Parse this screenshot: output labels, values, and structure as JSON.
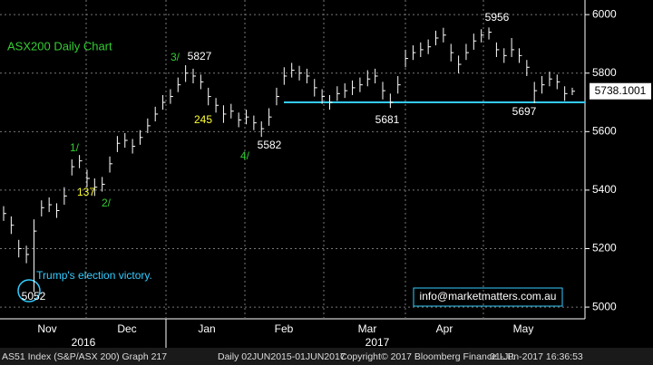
{
  "chart_data": {
    "type": "ohlc",
    "title": "ASX200 Daily Chart",
    "color": "#ffffff",
    "close": [
      5320,
      5280,
      5200,
      5180,
      5260,
      5340,
      5350,
      5330,
      5380,
      5480,
      5500,
      5440,
      5410,
      5420,
      5490,
      5560,
      5570,
      5550,
      5580,
      5620,
      5660,
      5700,
      5720,
      5760,
      5800,
      5790,
      5770,
      5720,
      5690,
      5660,
      5670,
      5640,
      5650,
      5630,
      5610,
      5650,
      5720,
      5790,
      5810,
      5800,
      5790,
      5750,
      5720,
      5700,
      5730,
      5740,
      5750,
      5760,
      5780,
      5790,
      5740,
      5700,
      5760,
      5850,
      5870,
      5880,
      5890,
      5920,
      5930,
      5870,
      5830,
      5870,
      5910,
      5930,
      5940,
      5880,
      5860,
      5880,
      5860,
      5820,
      5740,
      5760,
      5780,
      5770,
      5730,
      5738.1001
    ],
    "high": [
      5345,
      5310,
      5230,
      5210,
      5300,
      5365,
      5375,
      5355,
      5410,
      5505,
      5520,
      5470,
      5440,
      5445,
      5515,
      5585,
      5595,
      5575,
      5605,
      5645,
      5685,
      5725,
      5745,
      5785,
      5827,
      5815,
      5795,
      5750,
      5715,
      5690,
      5695,
      5665,
      5675,
      5655,
      5635,
      5680,
      5750,
      5820,
      5835,
      5825,
      5815,
      5780,
      5745,
      5725,
      5755,
      5765,
      5775,
      5785,
      5810,
      5815,
      5770,
      5730,
      5790,
      5880,
      5895,
      5905,
      5915,
      5945,
      5955,
      5900,
      5860,
      5900,
      5935,
      5950,
      5956,
      5905,
      5885,
      5920,
      5885,
      5845,
      5770,
      5790,
      5805,
      5795,
      5755,
      5750
    ],
    "low": [
      5295,
      5250,
      5170,
      5150,
      5052,
      5310,
      5325,
      5305,
      5350,
      5450,
      5475,
      5410,
      5380,
      5395,
      5460,
      5530,
      5545,
      5525,
      5555,
      5595,
      5635,
      5675,
      5695,
      5735,
      5770,
      5765,
      5745,
      5690,
      5665,
      5630,
      5645,
      5615,
      5625,
      5605,
      5582,
      5620,
      5690,
      5760,
      5785,
      5775,
      5765,
      5720,
      5695,
      5675,
      5705,
      5715,
      5725,
      5735,
      5755,
      5765,
      5710,
      5681,
      5730,
      5820,
      5845,
      5855,
      5865,
      5895,
      5905,
      5840,
      5800,
      5845,
      5880,
      5905,
      5915,
      5855,
      5835,
      5855,
      5835,
      5790,
      5697,
      5730,
      5755,
      5745,
      5705,
      5725
    ],
    "ylim": [
      4960,
      6050
    ],
    "yticks": [
      5000,
      5200,
      5400,
      5600,
      5800,
      6000
    ],
    "grid": true,
    "support_level": 5700,
    "months": [
      "Nov",
      "Dec",
      "Jan",
      "Feb",
      "Mar",
      "Apr",
      "May"
    ],
    "years": [
      "2016",
      "2017"
    ],
    "last_price_label": "5738.1001",
    "annotations": [
      "5827",
      "5956",
      "5681",
      "5697",
      "5582",
      "5052",
      "245",
      "137",
      "1/",
      "2/",
      "3/",
      "4/",
      "Trump's election victory."
    ],
    "watermark": "info@marketmatters.com.au",
    "footer": [
      "AS51 Index (S&P/ASX 200) Graph 217",
      "Daily 02JUN2015-01JUN2017",
      "Copyright© 2017 Bloomberg Finance L.P.",
      "01-Jun-2017 16:36:53"
    ]
  }
}
